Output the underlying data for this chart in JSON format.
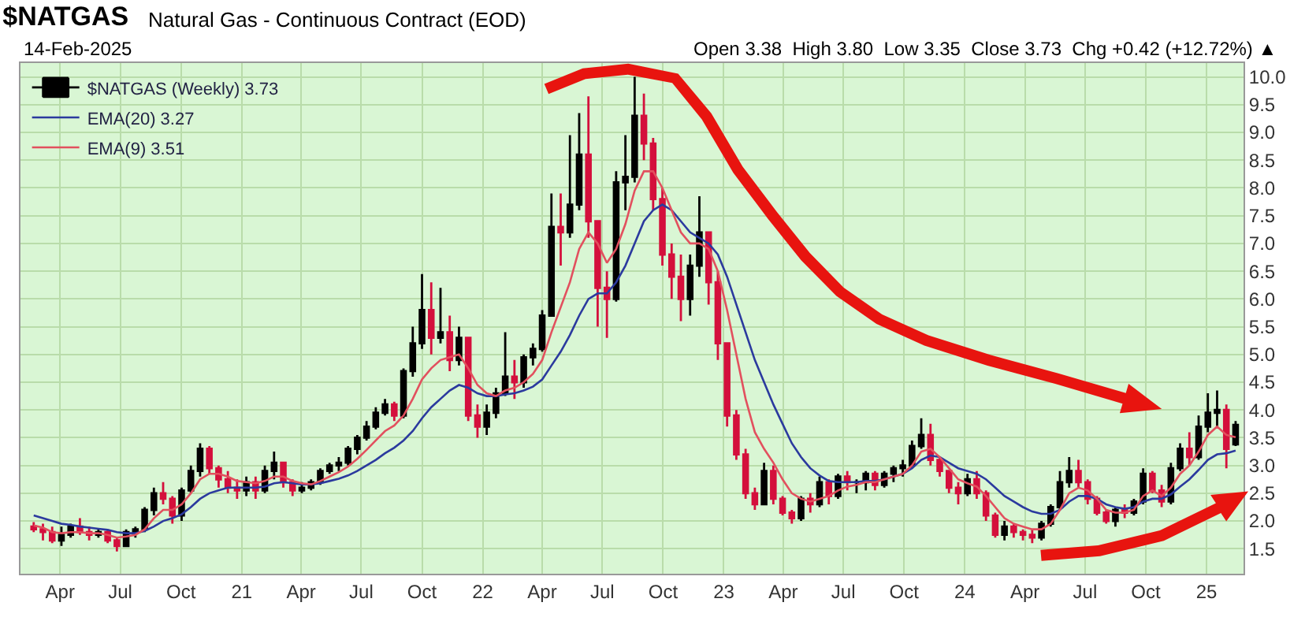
{
  "chart_data": {
    "type": "candlestick",
    "title": "$NATGAS",
    "subtitle": "Natural Gas - Continuous Contract (EOD)",
    "annotations": [
      "14-Feb-2025",
      "Open 3.38  High 3.80  Low 3.35  Close 3.73  Chg +0.42 (+12.72%) ▲"
    ],
    "x": [
      "2020-02-21",
      "2020-03-06",
      "2020-03-20",
      "2020-04-03",
      "2020-04-17",
      "2020-05-01",
      "2020-05-15",
      "2020-05-29",
      "2020-06-12",
      "2020-06-26",
      "2020-07-10",
      "2020-07-24",
      "2020-08-07",
      "2020-08-21",
      "2020-09-04",
      "2020-09-18",
      "2020-10-02",
      "2020-10-16",
      "2020-10-30",
      "2020-11-13",
      "2020-11-27",
      "2020-12-11",
      "2020-12-25",
      "2021-01-08",
      "2021-01-22",
      "2021-02-05",
      "2021-02-19",
      "2021-03-05",
      "2021-03-19",
      "2021-04-02",
      "2021-04-16",
      "2021-04-30",
      "2021-05-14",
      "2021-05-28",
      "2021-06-11",
      "2021-06-25",
      "2021-07-09",
      "2021-07-23",
      "2021-08-06",
      "2021-08-20",
      "2021-09-03",
      "2021-09-17",
      "2021-10-01",
      "2021-10-15",
      "2021-10-29",
      "2021-11-12",
      "2021-11-26",
      "2021-12-10",
      "2021-12-24",
      "2022-01-07",
      "2022-01-21",
      "2022-02-04",
      "2022-02-18",
      "2022-03-04",
      "2022-03-18",
      "2022-04-01",
      "2022-04-15",
      "2022-04-29",
      "2022-05-13",
      "2022-05-27",
      "2022-06-10",
      "2022-06-24",
      "2022-07-08",
      "2022-07-22",
      "2022-08-05",
      "2022-08-19",
      "2022-09-02",
      "2022-09-16",
      "2022-09-30",
      "2022-10-14",
      "2022-10-28",
      "2022-11-11",
      "2022-11-25",
      "2022-12-09",
      "2022-12-23",
      "2023-01-06",
      "2023-01-20",
      "2023-02-03",
      "2023-02-17",
      "2023-03-03",
      "2023-03-17",
      "2023-03-31",
      "2023-04-14",
      "2023-04-28",
      "2023-05-12",
      "2023-05-26",
      "2023-06-09",
      "2023-06-23",
      "2023-07-07",
      "2023-07-21",
      "2023-08-04",
      "2023-08-18",
      "2023-09-01",
      "2023-09-15",
      "2023-09-29",
      "2023-10-13",
      "2023-10-27",
      "2023-11-10",
      "2023-11-24",
      "2023-12-08",
      "2023-12-22",
      "2024-01-05",
      "2024-01-19",
      "2024-02-02",
      "2024-02-16",
      "2024-03-01",
      "2024-03-15",
      "2024-03-29",
      "2024-04-12",
      "2024-04-26",
      "2024-05-10",
      "2024-05-24",
      "2024-06-07",
      "2024-06-21",
      "2024-07-05",
      "2024-07-19",
      "2024-08-02",
      "2024-08-16",
      "2024-08-30",
      "2024-09-13",
      "2024-09-27",
      "2024-10-11",
      "2024-10-25",
      "2024-11-08",
      "2024-11-22",
      "2024-12-06",
      "2024-12-20",
      "2025-01-03",
      "2025-01-17",
      "2025-01-31",
      "2025-02-14"
    ],
    "series": [
      {
        "name": "$NATGAS (Weekly) 3.73",
        "ohlc": [
          [
            1.9,
            1.98,
            1.8,
            1.85
          ],
          [
            1.85,
            1.95,
            1.65,
            1.8
          ],
          [
            1.8,
            1.9,
            1.6,
            1.65
          ],
          [
            1.65,
            1.9,
            1.55,
            1.75
          ],
          [
            1.75,
            1.95,
            1.7,
            1.9
          ],
          [
            1.9,
            2.05,
            1.75,
            1.8
          ],
          [
            1.8,
            1.9,
            1.65,
            1.75
          ],
          [
            1.75,
            1.85,
            1.7,
            1.8
          ],
          [
            1.8,
            1.85,
            1.6,
            1.65
          ],
          [
            1.65,
            1.7,
            1.45,
            1.55
          ],
          [
            1.55,
            1.85,
            1.55,
            1.8
          ],
          [
            1.8,
            1.9,
            1.7,
            1.85
          ],
          [
            1.85,
            2.25,
            1.8,
            2.2
          ],
          [
            2.2,
            2.6,
            2.1,
            2.5
          ],
          [
            2.5,
            2.7,
            2.3,
            2.4
          ],
          [
            2.4,
            2.45,
            1.95,
            2.1
          ],
          [
            2.1,
            2.6,
            2.0,
            2.55
          ],
          [
            2.55,
            3.0,
            2.5,
            2.9
          ],
          [
            2.9,
            3.4,
            2.8,
            3.3
          ],
          [
            3.3,
            3.35,
            2.85,
            2.95
          ],
          [
            2.95,
            3.0,
            2.6,
            2.75
          ],
          [
            2.75,
            2.9,
            2.5,
            2.6
          ],
          [
            2.6,
            2.75,
            2.4,
            2.55
          ],
          [
            2.55,
            2.8,
            2.45,
            2.7
          ],
          [
            2.7,
            2.8,
            2.4,
            2.55
          ],
          [
            2.55,
            3.0,
            2.5,
            2.9
          ],
          [
            2.9,
            3.25,
            2.75,
            3.05
          ],
          [
            3.05,
            3.05,
            2.6,
            2.7
          ],
          [
            2.7,
            2.75,
            2.45,
            2.55
          ],
          [
            2.55,
            2.7,
            2.5,
            2.6
          ],
          [
            2.6,
            2.75,
            2.55,
            2.7
          ],
          [
            2.7,
            2.95,
            2.65,
            2.9
          ],
          [
            2.9,
            3.05,
            2.85,
            3.0
          ],
          [
            3.0,
            3.15,
            2.9,
            3.05
          ],
          [
            3.05,
            3.35,
            3.0,
            3.3
          ],
          [
            3.3,
            3.55,
            3.2,
            3.5
          ],
          [
            3.5,
            3.8,
            3.45,
            3.7
          ],
          [
            3.7,
            4.05,
            3.65,
            3.95
          ],
          [
            3.95,
            4.2,
            3.9,
            4.1
          ],
          [
            4.1,
            4.15,
            3.8,
            3.9
          ],
          [
            3.9,
            4.75,
            3.85,
            4.7
          ],
          [
            4.7,
            5.5,
            4.6,
            5.2
          ],
          [
            5.2,
            6.45,
            5.1,
            5.8
          ],
          [
            5.8,
            6.3,
            5.0,
            5.3
          ],
          [
            5.3,
            6.2,
            5.2,
            5.4
          ],
          [
            5.4,
            5.7,
            4.7,
            4.9
          ],
          [
            4.9,
            5.5,
            4.8,
            5.3
          ],
          [
            5.3,
            5.3,
            3.8,
            3.9
          ],
          [
            3.9,
            4.1,
            3.5,
            3.7
          ],
          [
            3.7,
            4.1,
            3.55,
            3.95
          ],
          [
            3.95,
            4.4,
            3.85,
            4.3
          ],
          [
            4.3,
            5.4,
            4.25,
            4.6
          ],
          [
            4.6,
            4.9,
            4.2,
            4.5
          ],
          [
            4.5,
            5.0,
            4.4,
            4.95
          ],
          [
            4.95,
            5.2,
            4.8,
            5.1
          ],
          [
            5.1,
            5.8,
            5.05,
            5.7
          ],
          [
            5.7,
            7.9,
            5.7,
            7.3
          ],
          [
            7.3,
            7.9,
            6.6,
            7.2
          ],
          [
            7.2,
            8.95,
            7.1,
            7.7
          ],
          [
            7.7,
            9.35,
            7.6,
            8.6
          ],
          [
            8.6,
            9.65,
            7.1,
            7.4
          ],
          [
            7.4,
            7.4,
            5.5,
            6.2
          ],
          [
            6.2,
            6.5,
            5.3,
            6.0
          ],
          [
            6.0,
            8.3,
            5.95,
            8.1
          ],
          [
            8.1,
            8.95,
            7.6,
            8.2
          ],
          [
            8.2,
            10.0,
            8.1,
            9.3
          ],
          [
            9.3,
            9.7,
            8.5,
            8.8
          ],
          [
            8.8,
            8.9,
            7.6,
            7.8
          ],
          [
            7.8,
            8.0,
            6.6,
            6.8
          ],
          [
            6.8,
            7.0,
            6.0,
            6.4
          ],
          [
            6.4,
            6.8,
            5.6,
            6.0
          ],
          [
            6.0,
            6.8,
            5.7,
            6.6
          ],
          [
            6.6,
            7.85,
            6.4,
            7.2
          ],
          [
            7.2,
            7.2,
            5.9,
            6.3
          ],
          [
            6.3,
            6.5,
            4.9,
            5.2
          ],
          [
            5.2,
            5.2,
            3.7,
            3.9
          ],
          [
            3.9,
            4.0,
            3.1,
            3.2
          ],
          [
            3.2,
            3.3,
            2.4,
            2.5
          ],
          [
            2.5,
            2.6,
            2.2,
            2.3
          ],
          [
            2.3,
            3.05,
            2.3,
            2.9
          ],
          [
            2.9,
            3.0,
            2.3,
            2.4
          ],
          [
            2.4,
            2.45,
            2.1,
            2.15
          ],
          [
            2.15,
            2.2,
            1.95,
            2.05
          ],
          [
            2.05,
            2.45,
            2.0,
            2.4
          ],
          [
            2.4,
            2.5,
            2.15,
            2.3
          ],
          [
            2.3,
            2.8,
            2.25,
            2.7
          ],
          [
            2.7,
            2.75,
            2.3,
            2.45
          ],
          [
            2.45,
            2.85,
            2.4,
            2.8
          ],
          [
            2.8,
            2.9,
            2.55,
            2.7
          ],
          [
            2.7,
            2.75,
            2.5,
            2.7
          ],
          [
            2.7,
            2.9,
            2.55,
            2.85
          ],
          [
            2.85,
            2.9,
            2.55,
            2.65
          ],
          [
            2.65,
            2.9,
            2.6,
            2.85
          ],
          [
            2.85,
            3.0,
            2.7,
            2.95
          ],
          [
            2.95,
            3.1,
            2.8,
            3.0
          ],
          [
            3.0,
            3.45,
            2.95,
            3.35
          ],
          [
            3.35,
            3.85,
            3.3,
            3.55
          ],
          [
            3.55,
            3.75,
            3.0,
            3.1
          ],
          [
            3.1,
            3.15,
            2.8,
            2.9
          ],
          [
            2.9,
            2.9,
            2.5,
            2.6
          ],
          [
            2.6,
            2.7,
            2.3,
            2.5
          ],
          [
            2.5,
            2.85,
            2.45,
            2.75
          ],
          [
            2.75,
            2.9,
            2.4,
            2.5
          ],
          [
            2.5,
            2.55,
            2.0,
            2.1
          ],
          [
            2.1,
            2.15,
            1.7,
            1.75
          ],
          [
            1.75,
            2.0,
            1.65,
            1.9
          ],
          [
            1.9,
            1.95,
            1.7,
            1.8
          ],
          [
            1.8,
            1.85,
            1.65,
            1.75
          ],
          [
            1.75,
            1.85,
            1.6,
            1.7
          ],
          [
            1.7,
            2.0,
            1.65,
            1.95
          ],
          [
            1.95,
            2.3,
            1.9,
            2.25
          ],
          [
            2.25,
            2.9,
            2.2,
            2.7
          ],
          [
            2.7,
            3.15,
            2.6,
            2.9
          ],
          [
            2.9,
            3.1,
            2.6,
            2.7
          ],
          [
            2.7,
            2.75,
            2.3,
            2.4
          ],
          [
            2.4,
            2.45,
            2.1,
            2.15
          ],
          [
            2.15,
            2.2,
            1.95,
            2.0
          ],
          [
            2.0,
            2.25,
            1.9,
            2.2
          ],
          [
            2.2,
            2.3,
            2.05,
            2.15
          ],
          [
            2.15,
            2.4,
            2.1,
            2.35
          ],
          [
            2.35,
            2.95,
            2.3,
            2.85
          ],
          [
            2.85,
            2.9,
            2.5,
            2.55
          ],
          [
            2.55,
            2.65,
            2.25,
            2.35
          ],
          [
            2.35,
            3.05,
            2.3,
            2.95
          ],
          [
            2.95,
            3.4,
            2.9,
            3.3
          ],
          [
            3.3,
            3.6,
            3.0,
            3.15
          ],
          [
            3.15,
            3.9,
            3.1,
            3.7
          ],
          [
            3.7,
            4.3,
            3.6,
            3.95
          ],
          [
            3.95,
            4.35,
            3.7,
            4.0
          ],
          [
            4.0,
            4.1,
            2.95,
            3.3
          ],
          [
            3.38,
            3.8,
            3.35,
            3.73
          ]
        ],
        "colors": [
          "#d4103c",
          "#d4103c",
          "#d4103c",
          "#000000",
          "#000000",
          "#d4103c",
          "#d4103c",
          "#000000",
          "#d4103c",
          "#d4103c",
          "#000000",
          "#000000",
          "#000000",
          "#000000",
          "#d4103c",
          "#d4103c",
          "#000000",
          "#000000",
          "#000000",
          "#d4103c",
          "#d4103c",
          "#d4103c",
          "#d4103c",
          "#000000",
          "#d4103c",
          "#000000",
          "#000000",
          "#d4103c",
          "#d4103c",
          "#000000",
          "#000000",
          "#000000",
          "#000000",
          "#000000",
          "#000000",
          "#000000",
          "#000000",
          "#000000",
          "#000000",
          "#d4103c",
          "#000000",
          "#000000",
          "#000000",
          "#d4103c",
          "#000000",
          "#d4103c",
          "#000000",
          "#d4103c",
          "#d4103c",
          "#000000",
          "#000000",
          "#000000",
          "#d4103c",
          "#000000",
          "#000000",
          "#000000",
          "#000000",
          "#d4103c",
          "#000000",
          "#000000",
          "#d4103c",
          "#d4103c",
          "#d4103c",
          "#000000",
          "#000000",
          "#000000",
          "#d4103c",
          "#d4103c",
          "#d4103c",
          "#d4103c",
          "#d4103c",
          "#000000",
          "#000000",
          "#d4103c",
          "#d4103c",
          "#d4103c",
          "#d4103c",
          "#d4103c",
          "#d4103c",
          "#000000",
          "#d4103c",
          "#d4103c",
          "#d4103c",
          "#000000",
          "#d4103c",
          "#000000",
          "#d4103c",
          "#000000",
          "#d4103c",
          "#000000",
          "#000000",
          "#d4103c",
          "#000000",
          "#000000",
          "#000000",
          "#000000",
          "#000000",
          "#d4103c",
          "#d4103c",
          "#d4103c",
          "#d4103c",
          "#000000",
          "#d4103c",
          "#d4103c",
          "#d4103c",
          "#000000",
          "#d4103c",
          "#d4103c",
          "#d4103c",
          "#000000",
          "#000000",
          "#000000",
          "#000000",
          "#d4103c",
          "#d4103c",
          "#d4103c",
          "#d4103c",
          "#000000",
          "#d4103c",
          "#000000",
          "#000000",
          "#d4103c",
          "#d4103c",
          "#000000",
          "#000000",
          "#d4103c",
          "#000000",
          "#000000",
          "#000000",
          "#d4103c",
          "#000000"
        ]
      },
      {
        "type": "line",
        "name": "EMA(20) 3.27",
        "color": "#2b3a9e",
        "values": [
          2.1,
          2.05,
          2.0,
          1.95,
          1.93,
          1.9,
          1.88,
          1.86,
          1.84,
          1.8,
          1.78,
          1.78,
          1.82,
          1.9,
          2.0,
          2.05,
          2.12,
          2.25,
          2.4,
          2.5,
          2.55,
          2.6,
          2.6,
          2.6,
          2.6,
          2.62,
          2.68,
          2.7,
          2.68,
          2.66,
          2.66,
          2.68,
          2.72,
          2.76,
          2.82,
          2.9,
          3.0,
          3.1,
          3.22,
          3.32,
          3.45,
          3.62,
          3.85,
          4.05,
          4.2,
          4.35,
          4.45,
          4.4,
          4.3,
          4.25,
          4.25,
          4.28,
          4.3,
          4.35,
          4.42,
          4.55,
          4.8,
          5.05,
          5.35,
          5.7,
          6.0,
          6.1,
          6.1,
          6.3,
          6.6,
          7.0,
          7.4,
          7.6,
          7.7,
          7.6,
          7.4,
          7.2,
          7.1,
          7.0,
          6.8,
          6.4,
          5.9,
          5.4,
          4.9,
          4.5,
          4.1,
          3.75,
          3.4,
          3.15,
          2.95,
          2.82,
          2.72,
          2.7,
          2.7,
          2.7,
          2.72,
          2.72,
          2.75,
          2.8,
          2.85,
          2.95,
          3.1,
          3.18,
          3.15,
          3.05,
          2.95,
          2.9,
          2.85,
          2.75,
          2.6,
          2.45,
          2.35,
          2.25,
          2.17,
          2.13,
          2.13,
          2.2,
          2.35,
          2.45,
          2.45,
          2.4,
          2.3,
          2.25,
          2.22,
          2.25,
          2.35,
          2.4,
          2.4,
          2.48,
          2.62,
          2.75,
          2.92,
          3.1,
          3.2,
          3.22,
          3.27
        ]
      },
      {
        "type": "line",
        "name": "EMA(9) 3.51",
        "color": "#e2505e",
        "values": [
          1.92,
          1.88,
          1.8,
          1.78,
          1.8,
          1.8,
          1.78,
          1.78,
          1.75,
          1.7,
          1.72,
          1.75,
          1.85,
          2.05,
          2.2,
          2.2,
          2.3,
          2.5,
          2.75,
          2.85,
          2.85,
          2.8,
          2.72,
          2.7,
          2.68,
          2.72,
          2.8,
          2.8,
          2.72,
          2.68,
          2.66,
          2.72,
          2.8,
          2.88,
          2.98,
          3.12,
          3.28,
          3.45,
          3.62,
          3.72,
          3.9,
          4.2,
          4.55,
          4.75,
          4.9,
          4.95,
          5.0,
          4.75,
          4.45,
          4.3,
          4.25,
          4.35,
          4.4,
          4.5,
          4.65,
          4.9,
          5.4,
          5.85,
          6.3,
          6.9,
          7.2,
          7.0,
          6.65,
          6.9,
          7.35,
          7.95,
          8.3,
          8.3,
          8.0,
          7.6,
          7.2,
          7.0,
          7.0,
          6.9,
          6.5,
          5.8,
          5.0,
          4.2,
          3.6,
          3.3,
          3.05,
          2.75,
          2.5,
          2.4,
          2.35,
          2.4,
          2.45,
          2.55,
          2.62,
          2.65,
          2.7,
          2.7,
          2.75,
          2.8,
          2.85,
          3.0,
          3.25,
          3.3,
          3.15,
          2.95,
          2.75,
          2.68,
          2.62,
          2.45,
          2.25,
          2.05,
          1.95,
          1.9,
          1.85,
          1.85,
          1.95,
          2.2,
          2.5,
          2.6,
          2.55,
          2.4,
          2.2,
          2.15,
          2.15,
          2.2,
          2.45,
          2.55,
          2.45,
          2.6,
          2.85,
          3.0,
          3.25,
          3.55,
          3.7,
          3.55,
          3.51
        ]
      }
    ],
    "xlim": [
      "2020-02-01",
      "2025-02-26"
    ],
    "xticks": [
      {
        "value": "2020-04-01",
        "label": "Apr"
      },
      {
        "value": "2020-07-01",
        "label": "Jul"
      },
      {
        "value": "2020-10-01",
        "label": "Oct"
      },
      {
        "value": "2021-01-01",
        "label": "21"
      },
      {
        "value": "2021-04-01",
        "label": "Apr"
      },
      {
        "value": "2021-07-01",
        "label": "Jul"
      },
      {
        "value": "2021-10-01",
        "label": "Oct"
      },
      {
        "value": "2022-01-01",
        "label": "22"
      },
      {
        "value": "2022-04-01",
        "label": "Apr"
      },
      {
        "value": "2022-07-01",
        "label": "Jul"
      },
      {
        "value": "2022-10-01",
        "label": "Oct"
      },
      {
        "value": "2023-01-01",
        "label": "23"
      },
      {
        "value": "2023-04-01",
        "label": "Apr"
      },
      {
        "value": "2023-07-01",
        "label": "Jul"
      },
      {
        "value": "2023-10-01",
        "label": "Oct"
      },
      {
        "value": "2024-01-01",
        "label": "24"
      },
      {
        "value": "2024-04-01",
        "label": "Apr"
      },
      {
        "value": "2024-07-01",
        "label": "Jul"
      },
      {
        "value": "2024-10-01",
        "label": "Oct"
      },
      {
        "value": "2025-01-01",
        "label": "25"
      }
    ],
    "ylim": [
      1.05,
      10.25
    ],
    "yticks": [
      1.5,
      {
        "value": 2,
        "label": "2.0"
      },
      2.5,
      {
        "value": 3,
        "label": "3.0"
      },
      3.5,
      {
        "value": 4,
        "label": "4.0"
      },
      4.5,
      {
        "value": 5,
        "label": "5.0"
      },
      5.5,
      {
        "value": 6,
        "label": "6.0"
      },
      6.5,
      {
        "value": 7,
        "label": "7.0"
      },
      7.5,
      {
        "value": 8,
        "label": "8.0"
      },
      8.5,
      {
        "value": 9,
        "label": "9.0"
      },
      9.5,
      {
        "value": 10,
        "label": "10.0"
      }
    ],
    "grid": true,
    "legend": "top left"
  }
}
